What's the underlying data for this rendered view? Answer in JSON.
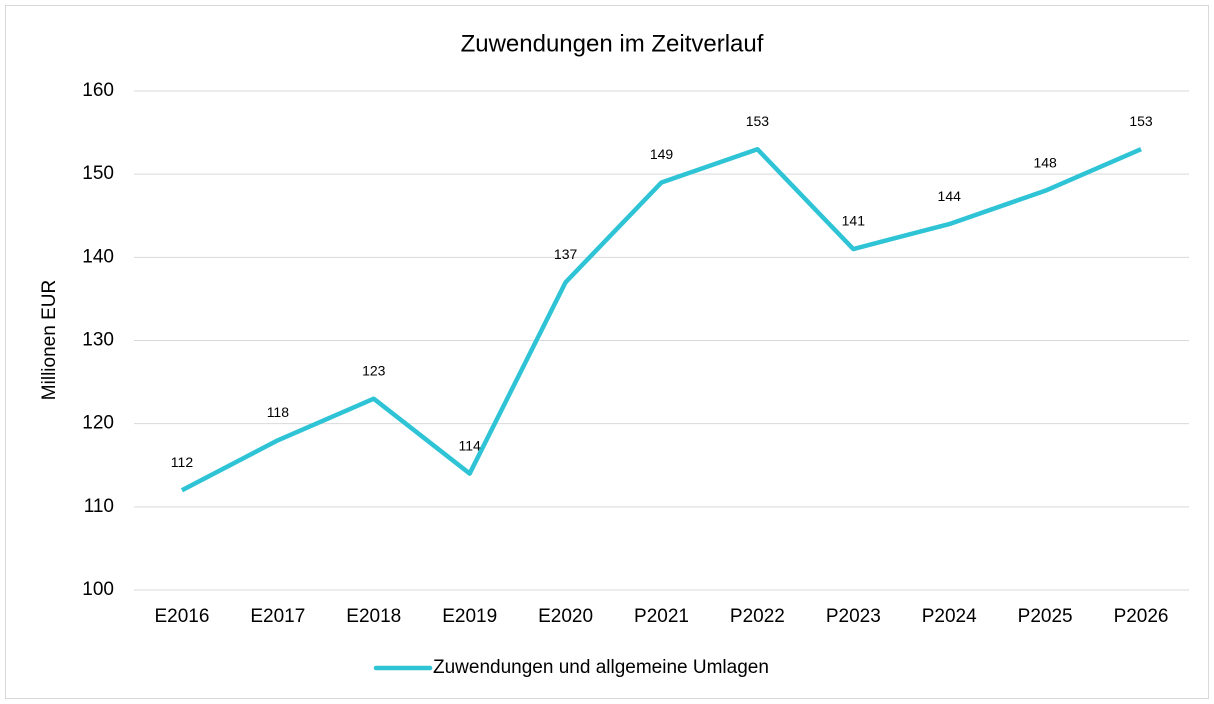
{
  "chart_data": {
    "type": "line",
    "title": "Zuwendungen im Zeitverlauf",
    "y_label": "Millionen EUR",
    "categories": [
      "E2016",
      "E2017",
      "E2018",
      "E2019",
      "E2020",
      "P2021",
      "P2022",
      "P2023",
      "P2024",
      "P2025",
      "P2026"
    ],
    "series": [
      {
        "name": "Zuwendungen und allgemeine Umlagen",
        "color": "#2ec4d6",
        "values": [
          112,
          118,
          123,
          114,
          137,
          149,
          153,
          141,
          144,
          148,
          153
        ]
      }
    ],
    "ylim": [
      100,
      160
    ],
    "yticks": [
      100,
      110,
      120,
      130,
      140,
      150,
      160
    ],
    "grid": true,
    "legend": "bottom"
  }
}
